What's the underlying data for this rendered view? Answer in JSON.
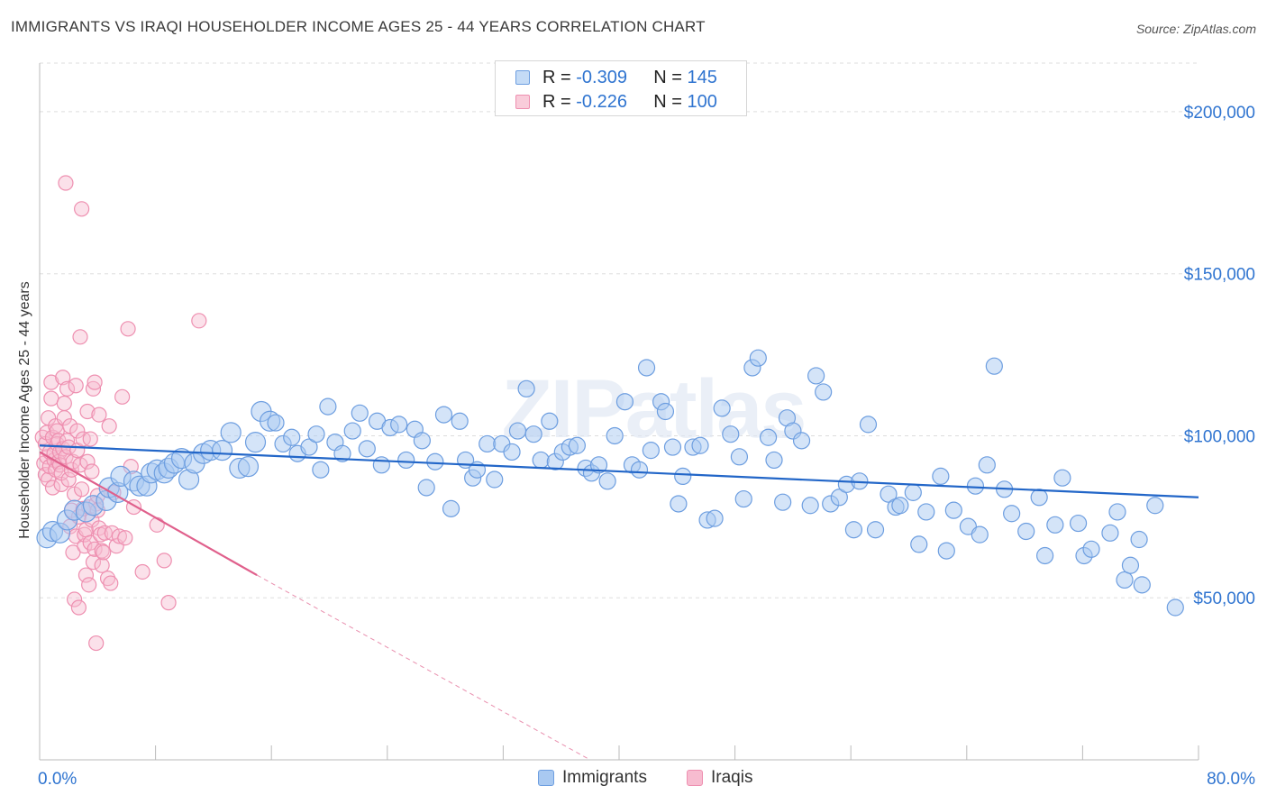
{
  "header": {
    "title": "IMMIGRANTS VS IRAQI HOUSEHOLDER INCOME AGES 25 - 44 YEARS CORRELATION CHART",
    "source": "Source: ZipAtlas.com"
  },
  "watermark": "ZIPatlas",
  "legend_stats": [
    {
      "r_label": "R =",
      "r_value": "-0.309",
      "n_label": "N =",
      "n_value": "145",
      "color": "#9dc3f0"
    },
    {
      "r_label": "R =",
      "r_value": "-0.226",
      "n_label": "N =",
      "n_value": "100",
      "color": "#f5aac2"
    }
  ],
  "colors": {
    "immigrants_fill": "#a9c9f1",
    "immigrants_stroke": "#6d9ee0",
    "immigrants_line": "#2266c8",
    "iraqis_fill": "#f7bcd0",
    "iraqis_stroke": "#ee8fb0",
    "iraqis_line": "#e0608c",
    "axis_text": "#2f74d0",
    "grid": "#dddddd"
  },
  "chart_data": {
    "type": "scatter",
    "title": "IMMIGRANTS VS IRAQI HOUSEHOLDER INCOME AGES 25 - 44 YEARS CORRELATION CHART",
    "xlabel": "",
    "ylabel": "Householder Income Ages 25 - 44 years",
    "xlim": [
      0,
      80
    ],
    "ylim": [
      0,
      215000
    ],
    "x_tick_labels": [
      "0.0%",
      "80.0%"
    ],
    "y_ticks": [
      50000,
      100000,
      150000,
      200000
    ],
    "y_tick_labels": [
      "$50,000",
      "$100,000",
      "$150,000",
      "$200,000"
    ],
    "grid": "horizontal dashed",
    "legend_position": "bottom-center",
    "series": [
      {
        "name": "Immigrants",
        "r": -0.309,
        "n": 145,
        "trend": {
          "x": [
            0,
            80
          ],
          "y": [
            97000,
            81000
          ]
        },
        "points": [
          [
            0.5,
            68500
          ],
          [
            0.9,
            70500
          ],
          [
            1.4,
            70000
          ],
          [
            1.9,
            74000
          ],
          [
            2.4,
            77000
          ],
          [
            3.2,
            76500
          ],
          [
            3.7,
            78500
          ],
          [
            4.6,
            80000
          ],
          [
            4.8,
            84000
          ],
          [
            5.4,
            82500
          ],
          [
            5.6,
            87500
          ],
          [
            6.5,
            86000
          ],
          [
            6.9,
            84500
          ],
          [
            7.4,
            84500
          ],
          [
            7.7,
            88500
          ],
          [
            8.1,
            89500
          ],
          [
            8.6,
            88500
          ],
          [
            8.9,
            90000
          ],
          [
            9.3,
            91500
          ],
          [
            9.8,
            93000
          ],
          [
            10.3,
            86500
          ],
          [
            10.7,
            91500
          ],
          [
            11.3,
            94500
          ],
          [
            11.8,
            95500
          ],
          [
            12.6,
            95500
          ],
          [
            13.2,
            101000
          ],
          [
            13.8,
            90000
          ],
          [
            14.4,
            90500
          ],
          [
            14.9,
            98000
          ],
          [
            15.3,
            107500
          ],
          [
            15.9,
            104500
          ],
          [
            16.3,
            104000
          ],
          [
            16.8,
            97500
          ],
          [
            17.4,
            99500
          ],
          [
            17.8,
            94500
          ],
          [
            18.6,
            96500
          ],
          [
            19.1,
            100500
          ],
          [
            19.4,
            89500
          ],
          [
            19.9,
            109000
          ],
          [
            20.4,
            98000
          ],
          [
            20.9,
            94500
          ],
          [
            21.6,
            101500
          ],
          [
            22.1,
            107000
          ],
          [
            22.6,
            96000
          ],
          [
            23.3,
            104500
          ],
          [
            23.6,
            91000
          ],
          [
            24.2,
            102500
          ],
          [
            24.8,
            103500
          ],
          [
            25.3,
            92500
          ],
          [
            25.9,
            102000
          ],
          [
            26.4,
            98500
          ],
          [
            26.7,
            84000
          ],
          [
            27.3,
            92000
          ],
          [
            27.9,
            106500
          ],
          [
            28.4,
            77500
          ],
          [
            29.0,
            104500
          ],
          [
            29.4,
            92500
          ],
          [
            29.9,
            87000
          ],
          [
            30.2,
            89500
          ],
          [
            30.9,
            97500
          ],
          [
            31.4,
            86500
          ],
          [
            31.9,
            97500
          ],
          [
            32.6,
            95000
          ],
          [
            33.0,
            101500
          ],
          [
            33.6,
            114500
          ],
          [
            34.1,
            100500
          ],
          [
            34.6,
            92500
          ],
          [
            35.2,
            104500
          ],
          [
            35.6,
            92000
          ],
          [
            36.1,
            95000
          ],
          [
            36.6,
            96500
          ],
          [
            37.1,
            97000
          ],
          [
            37.7,
            90000
          ],
          [
            38.1,
            88500
          ],
          [
            38.6,
            91000
          ],
          [
            39.2,
            86000
          ],
          [
            39.7,
            100000
          ],
          [
            40.4,
            110500
          ],
          [
            40.9,
            91000
          ],
          [
            41.4,
            89500
          ],
          [
            41.9,
            121000
          ],
          [
            42.2,
            95500
          ],
          [
            42.9,
            110500
          ],
          [
            43.2,
            107500
          ],
          [
            43.7,
            96500
          ],
          [
            44.1,
            79000
          ],
          [
            44.4,
            87500
          ],
          [
            45.1,
            96500
          ],
          [
            45.6,
            97000
          ],
          [
            46.1,
            74000
          ],
          [
            46.6,
            74500
          ],
          [
            47.1,
            108500
          ],
          [
            47.7,
            100500
          ],
          [
            48.3,
            93500
          ],
          [
            48.6,
            80500
          ],
          [
            49.2,
            121000
          ],
          [
            49.6,
            124000
          ],
          [
            50.3,
            99500
          ],
          [
            50.7,
            92500
          ],
          [
            51.3,
            79500
          ],
          [
            51.6,
            105500
          ],
          [
            52.0,
            101500
          ],
          [
            52.6,
            98500
          ],
          [
            53.2,
            78500
          ],
          [
            53.6,
            118500
          ],
          [
            54.1,
            113500
          ],
          [
            54.6,
            79000
          ],
          [
            55.2,
            81000
          ],
          [
            55.7,
            85000
          ],
          [
            56.2,
            71000
          ],
          [
            56.6,
            86000
          ],
          [
            57.2,
            103500
          ],
          [
            57.7,
            71000
          ],
          [
            58.6,
            82000
          ],
          [
            59.1,
            78000
          ],
          [
            59.4,
            78500
          ],
          [
            60.3,
            82500
          ],
          [
            60.7,
            66500
          ],
          [
            61.2,
            76500
          ],
          [
            62.2,
            87500
          ],
          [
            62.6,
            64500
          ],
          [
            63.1,
            77000
          ],
          [
            64.1,
            72000
          ],
          [
            64.6,
            84500
          ],
          [
            64.9,
            69500
          ],
          [
            65.4,
            91000
          ],
          [
            65.9,
            121500
          ],
          [
            66.6,
            83500
          ],
          [
            67.1,
            76000
          ],
          [
            68.1,
            70500
          ],
          [
            69.4,
            63000
          ],
          [
            70.1,
            72500
          ],
          [
            70.6,
            87000
          ],
          [
            71.7,
            73000
          ],
          [
            72.1,
            63000
          ],
          [
            72.6,
            65000
          ],
          [
            73.9,
            70000
          ],
          [
            74.4,
            76500
          ],
          [
            74.9,
            55500
          ],
          [
            75.3,
            60000
          ],
          [
            75.9,
            68000
          ],
          [
            76.1,
            54000
          ],
          [
            77.0,
            78500
          ],
          [
            78.4,
            47000
          ],
          [
            69.0,
            81000
          ]
        ]
      },
      {
        "name": "Iraqis",
        "r": -0.226,
        "n": 100,
        "trend": {
          "x": [
            0,
            15
          ],
          "y": [
            95000,
            57000
          ]
        },
        "trend_extension": {
          "x": [
            15,
            38
          ],
          "y": [
            57000,
            0
          ]
        },
        "points": [
          [
            0.2,
            99500
          ],
          [
            0.3,
            91500
          ],
          [
            0.4,
            88000
          ],
          [
            0.4,
            97500
          ],
          [
            0.5,
            93500
          ],
          [
            0.5,
            101000
          ],
          [
            0.6,
            86500
          ],
          [
            0.6,
            105500
          ],
          [
            0.7,
            95000
          ],
          [
            0.7,
            90500
          ],
          [
            0.8,
            116500
          ],
          [
            0.8,
            111500
          ],
          [
            0.9,
            99500
          ],
          [
            0.9,
            84000
          ],
          [
            1.0,
            92500
          ],
          [
            1.0,
            94500
          ],
          [
            1.1,
            103000
          ],
          [
            1.1,
            89500
          ],
          [
            1.2,
            101500
          ],
          [
            1.2,
            97500
          ],
          [
            1.3,
            92000
          ],
          [
            1.3,
            98500
          ],
          [
            1.4,
            95000
          ],
          [
            1.4,
            91000
          ],
          [
            1.5,
            85000
          ],
          [
            1.5,
            88500
          ],
          [
            1.6,
            118000
          ],
          [
            1.6,
            96000
          ],
          [
            1.7,
            110000
          ],
          [
            1.7,
            105500
          ],
          [
            1.8,
            178000
          ],
          [
            1.8,
            93500
          ],
          [
            1.9,
            114500
          ],
          [
            1.9,
            98500
          ],
          [
            2.0,
            86500
          ],
          [
            2.0,
            96500
          ],
          [
            2.1,
            72000
          ],
          [
            2.1,
            103000
          ],
          [
            2.2,
            77000
          ],
          [
            2.2,
            89500
          ],
          [
            2.3,
            92000
          ],
          [
            2.3,
            64000
          ],
          [
            2.4,
            49500
          ],
          [
            2.4,
            82000
          ],
          [
            2.5,
            69000
          ],
          [
            2.5,
            115500
          ],
          [
            2.6,
            101500
          ],
          [
            2.6,
            95500
          ],
          [
            2.7,
            47000
          ],
          [
            2.7,
            75000
          ],
          [
            2.8,
            91000
          ],
          [
            2.8,
            130500
          ],
          [
            2.9,
            170000
          ],
          [
            2.9,
            83500
          ],
          [
            3.0,
            77500
          ],
          [
            3.0,
            99000
          ],
          [
            3.1,
            66000
          ],
          [
            3.1,
            69500
          ],
          [
            3.2,
            57000
          ],
          [
            3.2,
            71000
          ],
          [
            3.3,
            92000
          ],
          [
            3.3,
            107500
          ],
          [
            3.4,
            54000
          ],
          [
            3.4,
            78000
          ],
          [
            3.5,
            67000
          ],
          [
            3.5,
            99000
          ],
          [
            3.6,
            74000
          ],
          [
            3.6,
            89000
          ],
          [
            3.7,
            61000
          ],
          [
            3.7,
            114500
          ],
          [
            3.8,
            65000
          ],
          [
            3.8,
            116500
          ],
          [
            3.9,
            79000
          ],
          [
            3.9,
            36000
          ],
          [
            4.0,
            77000
          ],
          [
            4.0,
            81500
          ],
          [
            4.1,
            71500
          ],
          [
            4.1,
            106500
          ],
          [
            4.2,
            69500
          ],
          [
            4.3,
            60000
          ],
          [
            4.3,
            64500
          ],
          [
            4.4,
            64000
          ],
          [
            4.5,
            70000
          ],
          [
            4.7,
            56000
          ],
          [
            4.8,
            103000
          ],
          [
            4.9,
            54500
          ],
          [
            5.0,
            70000
          ],
          [
            5.1,
            82500
          ],
          [
            5.3,
            66000
          ],
          [
            5.5,
            69000
          ],
          [
            5.7,
            112000
          ],
          [
            5.9,
            68500
          ],
          [
            6.1,
            133000
          ],
          [
            6.3,
            90500
          ],
          [
            6.5,
            78000
          ],
          [
            7.1,
            58000
          ],
          [
            8.1,
            72500
          ],
          [
            8.6,
            61500
          ],
          [
            8.9,
            48500
          ],
          [
            11.0,
            135500
          ]
        ]
      }
    ]
  }
}
